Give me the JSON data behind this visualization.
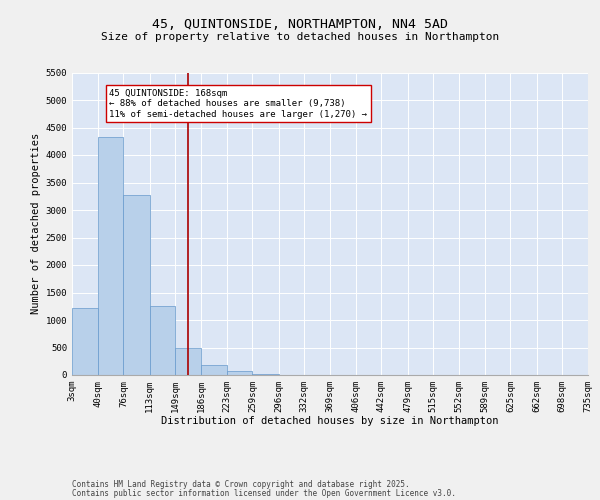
{
  "title_line1": "45, QUINTONSIDE, NORTHAMPTON, NN4 5AD",
  "title_line2": "Size of property relative to detached houses in Northampton",
  "xlabel": "Distribution of detached houses by size in Northampton",
  "ylabel": "Number of detached properties",
  "background_color": "#dce6f5",
  "fig_background_color": "#f0f0f0",
  "bar_color": "#b8d0ea",
  "bar_edge_color": "#6699cc",
  "vline_color": "#aa0000",
  "vline_x": 168,
  "annotation_text": "45 QUINTONSIDE: 168sqm\n← 88% of detached houses are smaller (9,738)\n11% of semi-detached houses are larger (1,270) →",
  "annotation_box_color": "#ffffff",
  "annotation_box_edge": "#cc0000",
  "footer_line1": "Contains HM Land Registry data © Crown copyright and database right 2025.",
  "footer_line2": "Contains public sector information licensed under the Open Government Licence v3.0.",
  "bin_edges": [
    3,
    40,
    76,
    113,
    149,
    186,
    223,
    259,
    296,
    332,
    369,
    406,
    442,
    479,
    515,
    552,
    589,
    625,
    662,
    698,
    735
  ],
  "bin_counts": [
    1220,
    4320,
    3280,
    1250,
    500,
    175,
    75,
    20,
    5,
    0,
    0,
    0,
    0,
    0,
    0,
    0,
    0,
    0,
    0,
    0
  ],
  "ylim": [
    0,
    5500
  ],
  "yticks": [
    0,
    500,
    1000,
    1500,
    2000,
    2500,
    3000,
    3500,
    4000,
    4500,
    5000,
    5500
  ],
  "grid_color": "#ffffff",
  "title_fontsize": 9.5,
  "subtitle_fontsize": 8,
  "axis_label_fontsize": 7.5,
  "tick_fontsize": 6.5,
  "footer_fontsize": 5.5
}
